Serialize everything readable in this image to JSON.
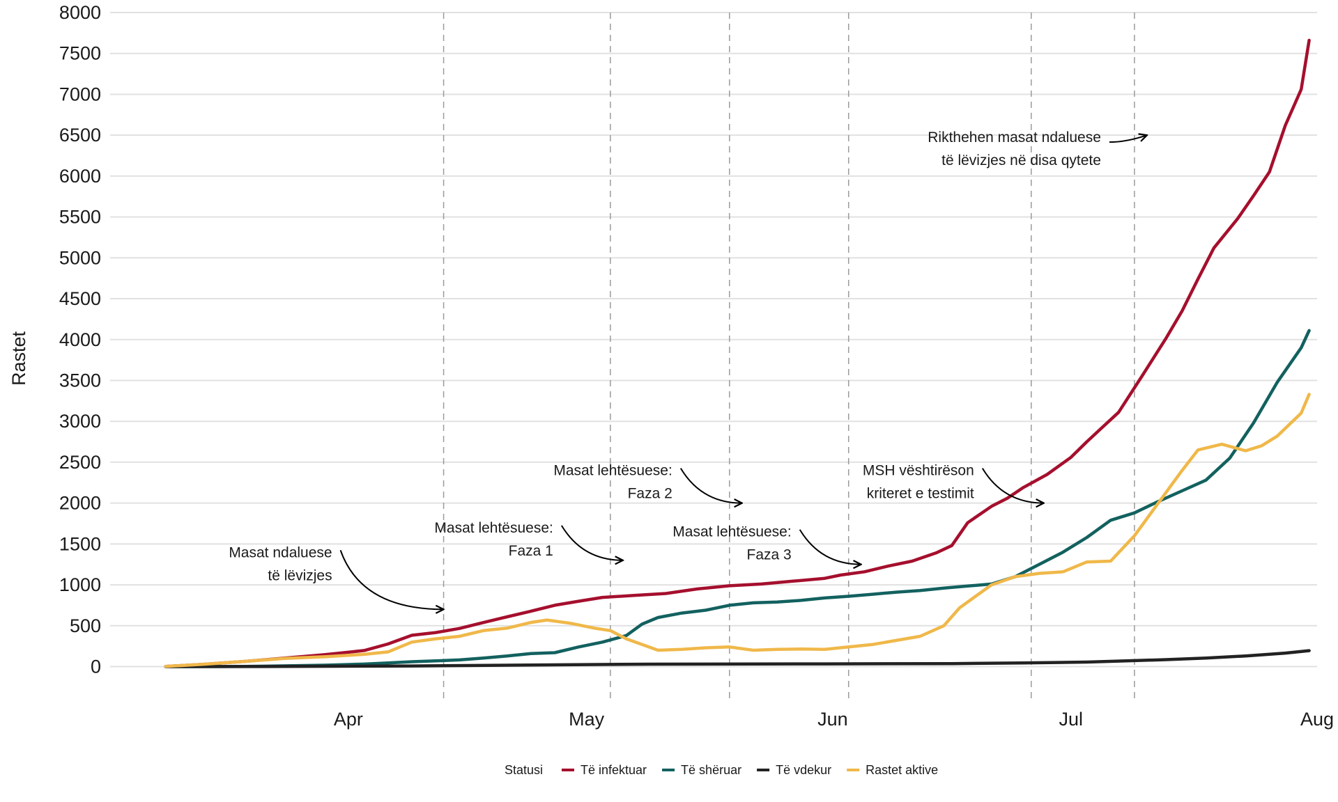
{
  "chart_data": {
    "type": "line",
    "title": "",
    "xlabel": "",
    "ylabel": "Rastet",
    "x_ticks": [
      {
        "label": "Apr",
        "date": "2020-04-01"
      },
      {
        "label": "May",
        "date": "2020-05-01"
      },
      {
        "label": "Jun",
        "date": "2020-06-01"
      },
      {
        "label": "Jul",
        "date": "2020-07-01"
      },
      {
        "label": "Aug",
        "date": "2020-08-01"
      }
    ],
    "x_range": [
      "2020-03-02",
      "2020-08-01"
    ],
    "y_ticks": [
      0,
      500,
      1000,
      1500,
      2000,
      2500,
      3000,
      3500,
      4000,
      4500,
      5000,
      5500,
      6000,
      6500,
      7000,
      7500,
      8000
    ],
    "ylim": [
      -430,
      8000
    ],
    "grid": "horizontal",
    "legend": {
      "title": "Statusi",
      "position": "bottom"
    },
    "series": [
      {
        "name": "Të infektuar",
        "color": "#A50F2D",
        "points": [
          [
            "2020-03-09",
            2
          ],
          [
            "2020-03-14",
            30
          ],
          [
            "2020-03-19",
            64
          ],
          [
            "2020-03-24",
            104
          ],
          [
            "2020-03-29",
            146
          ],
          [
            "2020-04-03",
            197
          ],
          [
            "2020-04-06",
            277
          ],
          [
            "2020-04-09",
            383
          ],
          [
            "2020-04-12",
            416
          ],
          [
            "2020-04-15",
            467
          ],
          [
            "2020-04-18",
            539
          ],
          [
            "2020-04-21",
            609
          ],
          [
            "2020-04-24",
            678
          ],
          [
            "2020-04-27",
            750
          ],
          [
            "2020-04-30",
            800
          ],
          [
            "2020-05-03",
            846
          ],
          [
            "2020-05-07",
            870
          ],
          [
            "2020-05-11",
            894
          ],
          [
            "2020-05-15",
            950
          ],
          [
            "2020-05-19",
            989
          ],
          [
            "2020-05-23",
            1010
          ],
          [
            "2020-05-27",
            1045
          ],
          [
            "2020-05-31",
            1080
          ],
          [
            "2020-06-02",
            1120
          ],
          [
            "2020-06-05",
            1160
          ],
          [
            "2020-06-08",
            1230
          ],
          [
            "2020-06-11",
            1290
          ],
          [
            "2020-06-14",
            1390
          ],
          [
            "2020-06-16",
            1480
          ],
          [
            "2020-06-18",
            1760
          ],
          [
            "2020-06-21",
            1960
          ],
          [
            "2020-06-23",
            2060
          ],
          [
            "2020-06-25",
            2190
          ],
          [
            "2020-06-28",
            2350
          ],
          [
            "2020-07-01",
            2560
          ],
          [
            "2020-07-03",
            2750
          ],
          [
            "2020-07-05",
            2930
          ],
          [
            "2020-07-07",
            3110
          ],
          [
            "2020-07-10",
            3560
          ],
          [
            "2020-07-13",
            4020
          ],
          [
            "2020-07-15",
            4350
          ],
          [
            "2020-07-17",
            4740
          ],
          [
            "2020-07-19",
            5120
          ],
          [
            "2020-07-22",
            5480
          ],
          [
            "2020-07-24",
            5760
          ],
          [
            "2020-07-26",
            6050
          ],
          [
            "2020-07-28",
            6620
          ],
          [
            "2020-07-30",
            7060
          ],
          [
            "2020-07-31",
            7660
          ]
        ]
      },
      {
        "name": "Të shëruar",
        "color": "#12615F",
        "points": [
          [
            "2020-03-09",
            0
          ],
          [
            "2020-03-19",
            2
          ],
          [
            "2020-03-29",
            17
          ],
          [
            "2020-04-03",
            31
          ],
          [
            "2020-04-06",
            44
          ],
          [
            "2020-04-09",
            60
          ],
          [
            "2020-04-12",
            70
          ],
          [
            "2020-04-15",
            82
          ],
          [
            "2020-04-18",
            104
          ],
          [
            "2020-04-21",
            130
          ],
          [
            "2020-04-24",
            160
          ],
          [
            "2020-04-27",
            170
          ],
          [
            "2020-04-30",
            240
          ],
          [
            "2020-05-03",
            300
          ],
          [
            "2020-05-06",
            380
          ],
          [
            "2020-05-08",
            520
          ],
          [
            "2020-05-10",
            600
          ],
          [
            "2020-05-13",
            655
          ],
          [
            "2020-05-16",
            690
          ],
          [
            "2020-05-19",
            750
          ],
          [
            "2020-05-22",
            780
          ],
          [
            "2020-05-25",
            790
          ],
          [
            "2020-05-28",
            810
          ],
          [
            "2020-05-31",
            840
          ],
          [
            "2020-06-03",
            860
          ],
          [
            "2020-06-06",
            885
          ],
          [
            "2020-06-09",
            910
          ],
          [
            "2020-06-12",
            930
          ],
          [
            "2020-06-15",
            960
          ],
          [
            "2020-06-18",
            985
          ],
          [
            "2020-06-21",
            1010
          ],
          [
            "2020-06-24",
            1100
          ],
          [
            "2020-06-27",
            1250
          ],
          [
            "2020-06-30",
            1400
          ],
          [
            "2020-07-03",
            1580
          ],
          [
            "2020-07-06",
            1790
          ],
          [
            "2020-07-09",
            1880
          ],
          [
            "2020-07-12",
            2020
          ],
          [
            "2020-07-15",
            2150
          ],
          [
            "2020-07-18",
            2280
          ],
          [
            "2020-07-21",
            2550
          ],
          [
            "2020-07-24",
            2980
          ],
          [
            "2020-07-27",
            3480
          ],
          [
            "2020-07-30",
            3900
          ],
          [
            "2020-07-31",
            4110
          ]
        ]
      },
      {
        "name": "Të vdekur",
        "color": "#222222",
        "points": [
          [
            "2020-03-09",
            0
          ],
          [
            "2020-03-24",
            2
          ],
          [
            "2020-04-09",
            8
          ],
          [
            "2020-04-24",
            20
          ],
          [
            "2020-05-09",
            30
          ],
          [
            "2020-05-31",
            33
          ],
          [
            "2020-06-16",
            37
          ],
          [
            "2020-06-25",
            45
          ],
          [
            "2020-07-03",
            55
          ],
          [
            "2020-07-08",
            70
          ],
          [
            "2020-07-13",
            85
          ],
          [
            "2020-07-18",
            105
          ],
          [
            "2020-07-23",
            130
          ],
          [
            "2020-07-28",
            165
          ],
          [
            "2020-07-31",
            195
          ]
        ]
      },
      {
        "name": "Rastet aktive",
        "color": "#F0B84A",
        "points": [
          [
            "2020-03-09",
            2
          ],
          [
            "2020-03-14",
            30
          ],
          [
            "2020-03-19",
            64
          ],
          [
            "2020-03-24",
            100
          ],
          [
            "2020-03-29",
            120
          ],
          [
            "2020-04-03",
            150
          ],
          [
            "2020-04-06",
            180
          ],
          [
            "2020-04-09",
            300
          ],
          [
            "2020-04-12",
            340
          ],
          [
            "2020-04-15",
            370
          ],
          [
            "2020-04-18",
            440
          ],
          [
            "2020-04-21",
            470
          ],
          [
            "2020-04-24",
            540
          ],
          [
            "2020-04-26",
            570
          ],
          [
            "2020-04-29",
            530
          ],
          [
            "2020-05-02",
            470
          ],
          [
            "2020-05-04",
            440
          ],
          [
            "2020-05-06",
            340
          ],
          [
            "2020-05-08",
            270
          ],
          [
            "2020-05-10",
            200
          ],
          [
            "2020-05-13",
            210
          ],
          [
            "2020-05-16",
            230
          ],
          [
            "2020-05-19",
            240
          ],
          [
            "2020-05-22",
            200
          ],
          [
            "2020-05-25",
            210
          ],
          [
            "2020-05-28",
            215
          ],
          [
            "2020-05-31",
            210
          ],
          [
            "2020-06-03",
            240
          ],
          [
            "2020-06-06",
            270
          ],
          [
            "2020-06-09",
            320
          ],
          [
            "2020-06-12",
            370
          ],
          [
            "2020-06-15",
            500
          ],
          [
            "2020-06-17",
            720
          ],
          [
            "2020-06-21",
            1000
          ],
          [
            "2020-06-24",
            1100
          ],
          [
            "2020-06-27",
            1140
          ],
          [
            "2020-06-30",
            1160
          ],
          [
            "2020-07-03",
            1280
          ],
          [
            "2020-07-06",
            1290
          ],
          [
            "2020-07-09",
            1600
          ],
          [
            "2020-07-12",
            2000
          ],
          [
            "2020-07-15",
            2400
          ],
          [
            "2020-07-17",
            2650
          ],
          [
            "2020-07-20",
            2720
          ],
          [
            "2020-07-23",
            2640
          ],
          [
            "2020-07-25",
            2700
          ],
          [
            "2020-07-27",
            2820
          ],
          [
            "2020-07-30",
            3100
          ],
          [
            "2020-07-31",
            3330
          ]
        ]
      }
    ],
    "events": [
      {
        "date": "2020-04-13",
        "lines": [
          "Masat ndaluese",
          "të lëvizjes"
        ],
        "arrow_to_value": 700
      },
      {
        "date": "2020-05-04",
        "lines": [
          "Masat lehtësuese:",
          "Faza 1"
        ],
        "arrow_to_value": 1300
      },
      {
        "date": "2020-05-19",
        "lines": [
          "Masat lehtësuese:",
          "Faza 2"
        ],
        "arrow_to_value": 2000
      },
      {
        "date": "2020-06-03",
        "lines": [
          "Masat lehtësuese:",
          "Faza 3"
        ],
        "arrow_to_value": 1250
      },
      {
        "date": "2020-06-26",
        "lines": [
          "MSH vështirëson",
          "kriteret e testimit"
        ],
        "arrow_to_value": 2000
      },
      {
        "date": "2020-07-09",
        "lines": [
          "Rikthehen masat ndaluese",
          "të lëvizjes në disa qytete"
        ],
        "arrow_to_value": 6500
      }
    ]
  }
}
